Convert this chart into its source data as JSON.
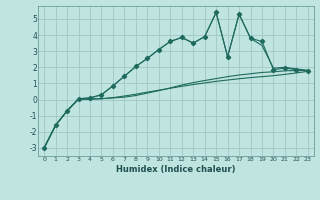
{
  "xlabel": "Humidex (Indice chaleur)",
  "bg_color": "#c0e4e0",
  "grid_color": "#a0c8c4",
  "line_color": "#1e6b5e",
  "xlim": [
    -0.5,
    23.5
  ],
  "ylim": [
    -3.5,
    5.8
  ],
  "yticks": [
    -3,
    -2,
    -1,
    0,
    1,
    2,
    3,
    4,
    5
  ],
  "xticks": [
    0,
    1,
    2,
    3,
    4,
    5,
    6,
    7,
    8,
    9,
    10,
    11,
    12,
    13,
    14,
    15,
    16,
    17,
    18,
    19,
    20,
    21,
    22,
    23
  ],
  "x_data": [
    0,
    1,
    2,
    3,
    4,
    5,
    6,
    7,
    8,
    9,
    10,
    11,
    12,
    13,
    14,
    15,
    16,
    17,
    18,
    19,
    20,
    21,
    22,
    23
  ],
  "y_main": [
    -3.0,
    -1.6,
    -0.7,
    0.05,
    0.1,
    0.3,
    0.85,
    1.45,
    2.05,
    2.55,
    3.1,
    3.6,
    3.85,
    3.5,
    3.9,
    5.4,
    2.65,
    5.3,
    3.8,
    3.6,
    1.85,
    1.95,
    1.85,
    1.8
  ],
  "y_upper": [
    -3.0,
    -1.6,
    -0.7,
    0.05,
    0.1,
    0.3,
    0.85,
    1.45,
    2.05,
    2.55,
    3.1,
    3.6,
    3.85,
    3.5,
    3.9,
    5.4,
    2.65,
    5.3,
    3.8,
    3.35,
    1.95,
    2.0,
    1.9,
    1.8
  ],
  "y_lower": [
    -3.0,
    -1.6,
    -0.7,
    0.05,
    0.05,
    0.05,
    0.1,
    0.15,
    0.25,
    0.4,
    0.55,
    0.72,
    0.9,
    1.05,
    1.18,
    1.3,
    1.42,
    1.52,
    1.6,
    1.68,
    1.72,
    1.78,
    1.8,
    1.8
  ],
  "y_smooth": [
    -3.0,
    -1.6,
    -0.7,
    0.0,
    0.02,
    0.05,
    0.12,
    0.22,
    0.33,
    0.46,
    0.58,
    0.7,
    0.82,
    0.93,
    1.03,
    1.13,
    1.21,
    1.29,
    1.36,
    1.42,
    1.48,
    1.56,
    1.65,
    1.75
  ]
}
